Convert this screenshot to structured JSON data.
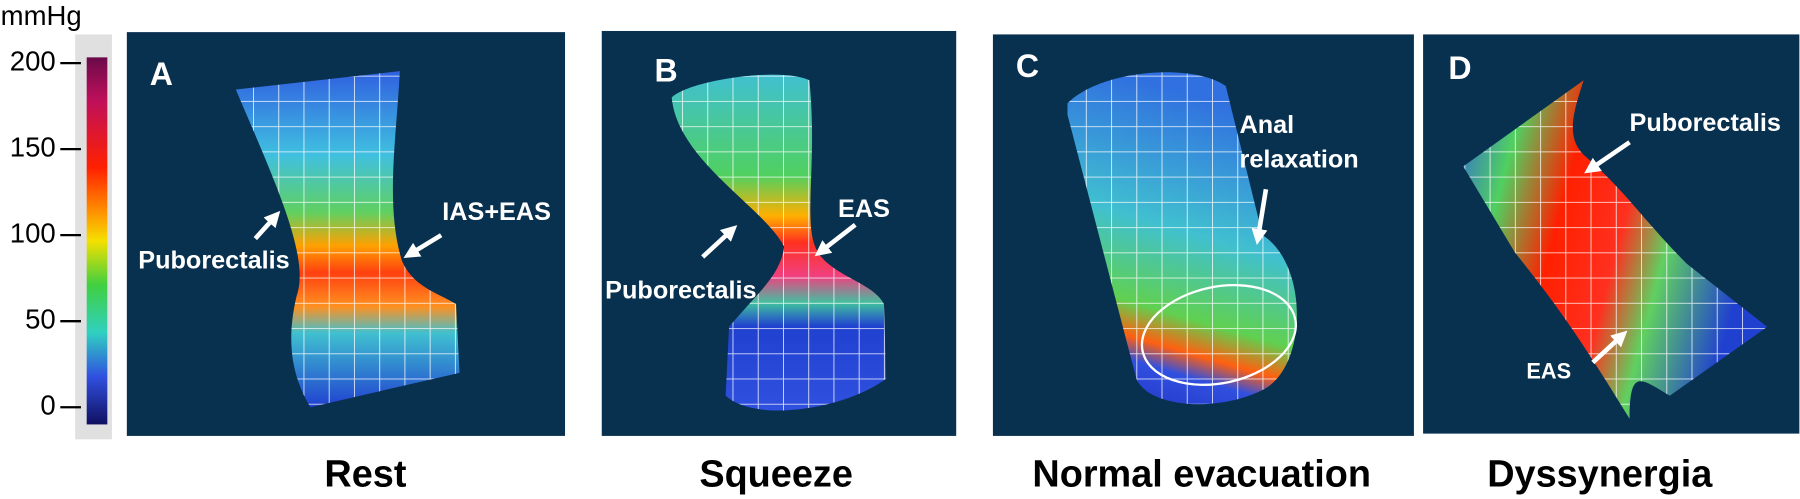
{
  "colorbar": {
    "unit": "mmHg",
    "ticks": [
      200,
      150,
      100,
      50,
      0
    ]
  },
  "panels": [
    {
      "letter": "A",
      "caption": "Rest",
      "annotations": [
        {
          "lines": [
            "Puborectalis"
          ]
        },
        {
          "lines": [
            "IAS+EAS"
          ]
        }
      ]
    },
    {
      "letter": "B",
      "caption": "Squeeze",
      "annotations": [
        {
          "lines": [
            "EAS"
          ]
        },
        {
          "lines": [
            "Puborectalis"
          ]
        }
      ]
    },
    {
      "letter": "C",
      "caption": "Normal evacuation",
      "annotations": [
        {
          "lines": [
            "Anal",
            "relaxation"
          ]
        }
      ]
    },
    {
      "letter": "D",
      "caption": "Dyssynergia",
      "annotations": [
        {
          "lines": [
            "Puborectalis"
          ]
        },
        {
          "lines": [
            "EAS"
          ]
        }
      ]
    }
  ]
}
